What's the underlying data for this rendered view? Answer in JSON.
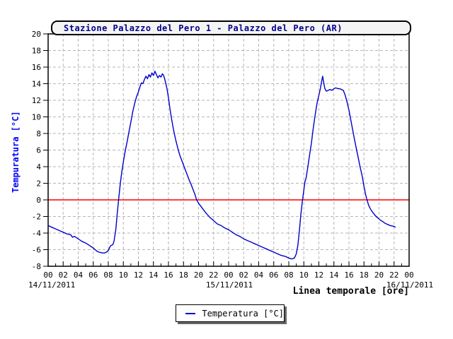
{
  "colors": {
    "series_line": "#0000cc",
    "zero_line": "#ff0000",
    "grid": "#b5b5b5",
    "axis": "#000000",
    "title_text": "#00008b",
    "y_axis_title_text": "#0000ff",
    "title_box_fill": "#f4f4f4"
  },
  "chart_data": {
    "type": "line",
    "title": "Stazione Palazzo del Pero 1 - Palazzo del Pero (AR)",
    "ylabel": "Tempuratura [°C]",
    "xlabel": "Linea temporale [ore]",
    "legend_label": "Temperatura [°C]",
    "legend_position": "bottom-center",
    "grid": true,
    "x_unit": "hours since 14/11/2011 00:00",
    "x_range": [
      0,
      48
    ],
    "ylim": [
      -8,
      20
    ],
    "y_tick_step": 2,
    "x_tick_step_hours": 2,
    "date_labels": [
      "14/11/2011",
      "15/11/2011",
      "16/11/2011"
    ],
    "x_tick_labels": [
      "00",
      "02",
      "04",
      "06",
      "08",
      "10",
      "12",
      "14",
      "16",
      "18",
      "20",
      "22",
      "00",
      "02",
      "04",
      "06",
      "08",
      "10",
      "12",
      "14",
      "16",
      "18",
      "20",
      "22",
      "00"
    ],
    "zero_reference_line_y": 0,
    "series": [
      {
        "name": "Temperatura [°C]",
        "points": [
          [
            0,
            -3.1
          ],
          [
            0.5,
            -3.3
          ],
          [
            1,
            -3.5
          ],
          [
            1.5,
            -3.7
          ],
          [
            2,
            -3.9
          ],
          [
            2.5,
            -4.1
          ],
          [
            3,
            -4.2
          ],
          [
            3.25,
            -4.5
          ],
          [
            3.5,
            -4.4
          ],
          [
            4,
            -4.7
          ],
          [
            4.5,
            -5.0
          ],
          [
            5,
            -5.2
          ],
          [
            5.5,
            -5.5
          ],
          [
            6,
            -5.8
          ],
          [
            6.25,
            -6.0
          ],
          [
            6.5,
            -6.2
          ],
          [
            6.75,
            -6.3
          ],
          [
            7,
            -6.35
          ],
          [
            7.25,
            -6.4
          ],
          [
            7.5,
            -6.4
          ],
          [
            7.75,
            -6.3
          ],
          [
            8,
            -6.1
          ],
          [
            8.2,
            -5.7
          ],
          [
            8.35,
            -5.5
          ],
          [
            8.6,
            -5.4
          ],
          [
            8.75,
            -5.0
          ],
          [
            9,
            -3.6
          ],
          [
            9.2,
            -1.5
          ],
          [
            9.4,
            0.3
          ],
          [
            9.6,
            2.0
          ],
          [
            9.8,
            3.4
          ],
          [
            10,
            4.6
          ],
          [
            10.25,
            5.9
          ],
          [
            10.5,
            7.0
          ],
          [
            10.75,
            8.2
          ],
          [
            11,
            9.4
          ],
          [
            11.25,
            10.6
          ],
          [
            11.5,
            11.6
          ],
          [
            11.75,
            12.4
          ],
          [
            12,
            13.0
          ],
          [
            12.2,
            13.6
          ],
          [
            12.4,
            14.1
          ],
          [
            12.6,
            14.0
          ],
          [
            12.8,
            14.5
          ],
          [
            13,
            14.9
          ],
          [
            13.2,
            14.6
          ],
          [
            13.4,
            15.1
          ],
          [
            13.6,
            14.8
          ],
          [
            13.8,
            15.3
          ],
          [
            14,
            15.0
          ],
          [
            14.2,
            15.5
          ],
          [
            14.4,
            15.1
          ],
          [
            14.6,
            14.7
          ],
          [
            14.8,
            15.0
          ],
          [
            15,
            14.8
          ],
          [
            15.2,
            15.2
          ],
          [
            15.4,
            14.9
          ],
          [
            15.6,
            14.2
          ],
          [
            15.8,
            13.4
          ],
          [
            16,
            12.3
          ],
          [
            16.2,
            11.0
          ],
          [
            16.4,
            9.8
          ],
          [
            16.6,
            8.8
          ],
          [
            16.8,
            7.9
          ],
          [
            17,
            7.1
          ],
          [
            17.25,
            6.2
          ],
          [
            17.5,
            5.4
          ],
          [
            17.75,
            4.8
          ],
          [
            18,
            4.2
          ],
          [
            18.25,
            3.6
          ],
          [
            18.5,
            3.0
          ],
          [
            18.75,
            2.4
          ],
          [
            19,
            1.9
          ],
          [
            19.25,
            1.3
          ],
          [
            19.5,
            0.7
          ],
          [
            19.75,
            0.0
          ],
          [
            20,
            -0.4
          ],
          [
            20.5,
            -1.0
          ],
          [
            21,
            -1.6
          ],
          [
            21.5,
            -2.1
          ],
          [
            22,
            -2.5
          ],
          [
            22.5,
            -2.9
          ],
          [
            23,
            -3.1
          ],
          [
            23.5,
            -3.4
          ],
          [
            24,
            -3.6
          ],
          [
            24.5,
            -3.9
          ],
          [
            25,
            -4.2
          ],
          [
            25.5,
            -4.4
          ],
          [
            26,
            -4.7
          ],
          [
            26.5,
            -4.9
          ],
          [
            27,
            -5.1
          ],
          [
            27.5,
            -5.3
          ],
          [
            28,
            -5.5
          ],
          [
            28.5,
            -5.7
          ],
          [
            29,
            -5.9
          ],
          [
            29.5,
            -6.1
          ],
          [
            30,
            -6.3
          ],
          [
            30.5,
            -6.5
          ],
          [
            31,
            -6.7
          ],
          [
            31.5,
            -6.8
          ],
          [
            32,
            -7.0
          ],
          [
            32.25,
            -7.1
          ],
          [
            32.5,
            -7.1
          ],
          [
            32.75,
            -7.0
          ],
          [
            33,
            -6.5
          ],
          [
            33.2,
            -5.5
          ],
          [
            33.4,
            -3.8
          ],
          [
            33.6,
            -1.8
          ],
          [
            33.8,
            -0.2
          ],
          [
            34,
            1.2
          ],
          [
            34.15,
            2.2
          ],
          [
            34.3,
            2.6
          ],
          [
            34.5,
            3.8
          ],
          [
            34.75,
            5.3
          ],
          [
            35,
            6.8
          ],
          [
            35.25,
            8.6
          ],
          [
            35.5,
            10.2
          ],
          [
            35.75,
            11.6
          ],
          [
            36,
            12.6
          ],
          [
            36.2,
            13.4
          ],
          [
            36.35,
            14.2
          ],
          [
            36.5,
            14.9
          ],
          [
            36.65,
            14.1
          ],
          [
            36.8,
            13.4
          ],
          [
            37,
            13.1
          ],
          [
            37.25,
            13.2
          ],
          [
            37.5,
            13.3
          ],
          [
            37.75,
            13.2
          ],
          [
            38,
            13.4
          ],
          [
            38.25,
            13.5
          ],
          [
            38.5,
            13.4
          ],
          [
            38.75,
            13.4
          ],
          [
            39,
            13.3
          ],
          [
            39.25,
            13.2
          ],
          [
            39.5,
            12.6
          ],
          [
            39.75,
            11.8
          ],
          [
            40,
            10.8
          ],
          [
            40.25,
            9.6
          ],
          [
            40.5,
            8.4
          ],
          [
            40.75,
            7.2
          ],
          [
            41,
            6.1
          ],
          [
            41.25,
            5.0
          ],
          [
            41.5,
            3.9
          ],
          [
            41.75,
            2.9
          ],
          [
            42,
            1.6
          ],
          [
            42.2,
            0.7
          ],
          [
            42.4,
            0.0
          ],
          [
            42.6,
            -0.6
          ],
          [
            42.8,
            -1.0
          ],
          [
            43,
            -1.3
          ],
          [
            43.25,
            -1.6
          ],
          [
            43.5,
            -1.9
          ],
          [
            43.75,
            -2.1
          ],
          [
            44,
            -2.3
          ],
          [
            44.25,
            -2.5
          ],
          [
            44.5,
            -2.6
          ],
          [
            44.75,
            -2.8
          ],
          [
            45,
            -2.9
          ],
          [
            45.25,
            -3.0
          ],
          [
            45.5,
            -3.1
          ],
          [
            46,
            -3.2
          ],
          [
            46.2,
            -3.3
          ]
        ]
      }
    ]
  }
}
